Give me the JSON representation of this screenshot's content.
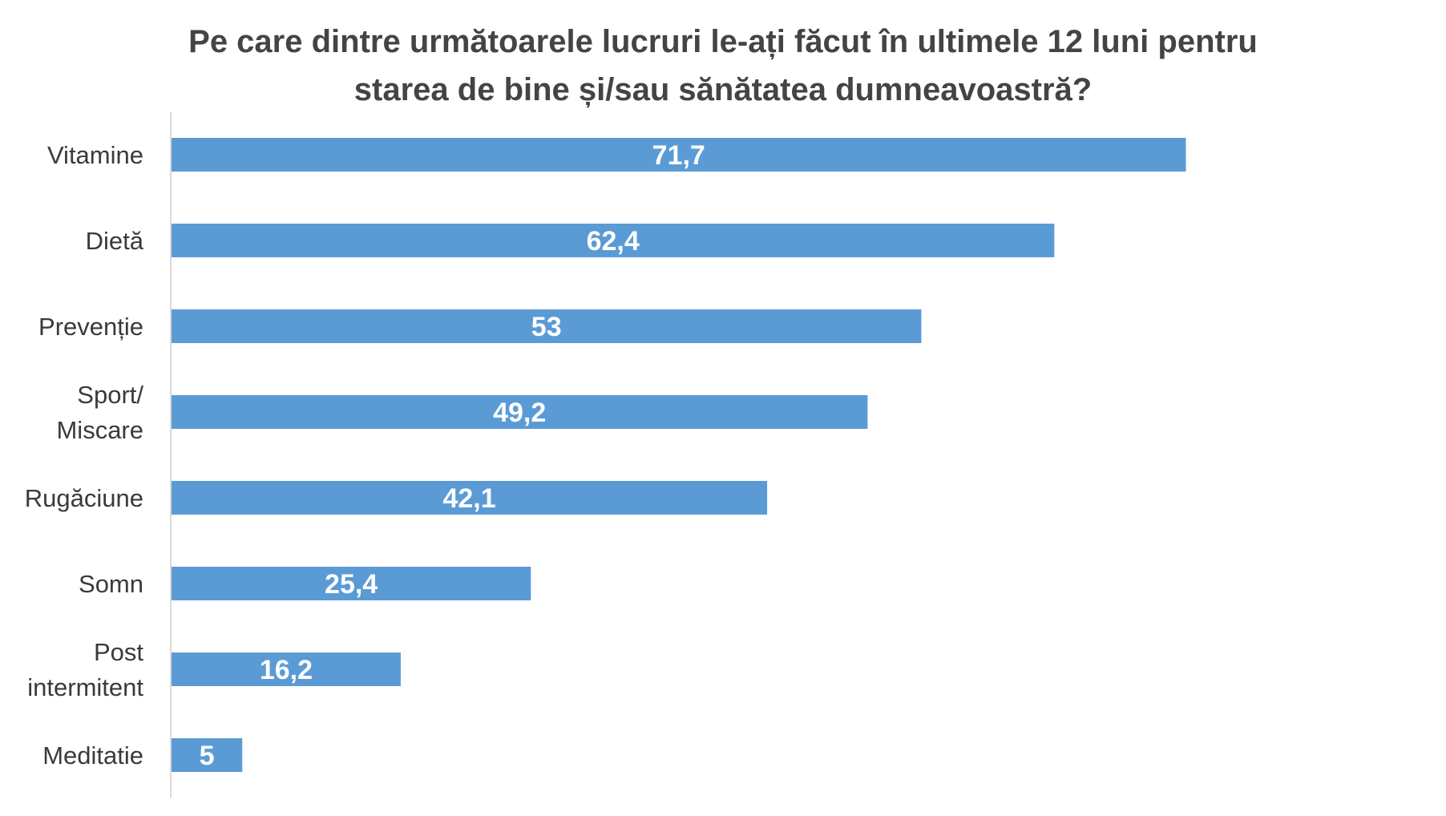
{
  "chart_data": {
    "type": "bar",
    "orientation": "horizontal",
    "title_lines": [
      "Pe care dintre următoarele lucruri le-ați făcut în ultimele 12 luni pentru",
      "starea de bine și/sau sănătatea dumneavoastră?"
    ],
    "categories": [
      [
        "Vitamine"
      ],
      [
        "Dietă"
      ],
      [
        "Prevenție"
      ],
      [
        "Sport/",
        "Miscare"
      ],
      [
        "Rugăciune"
      ],
      [
        "Somn"
      ],
      [
        "Post",
        "intermitent"
      ],
      [
        "Meditatie"
      ]
    ],
    "values": [
      71.7,
      62.4,
      53,
      49.2,
      42.1,
      25.4,
      16.2,
      5
    ],
    "value_labels": [
      "71,7",
      "62,4",
      "53",
      "49,2",
      "42,1",
      "25,4",
      "16,2",
      "5"
    ],
    "xlim": [
      0,
      80
    ],
    "grid": false,
    "legend": "none",
    "bar_color": "#5b9bd5",
    "axis_color": "#d9d9d9"
  }
}
